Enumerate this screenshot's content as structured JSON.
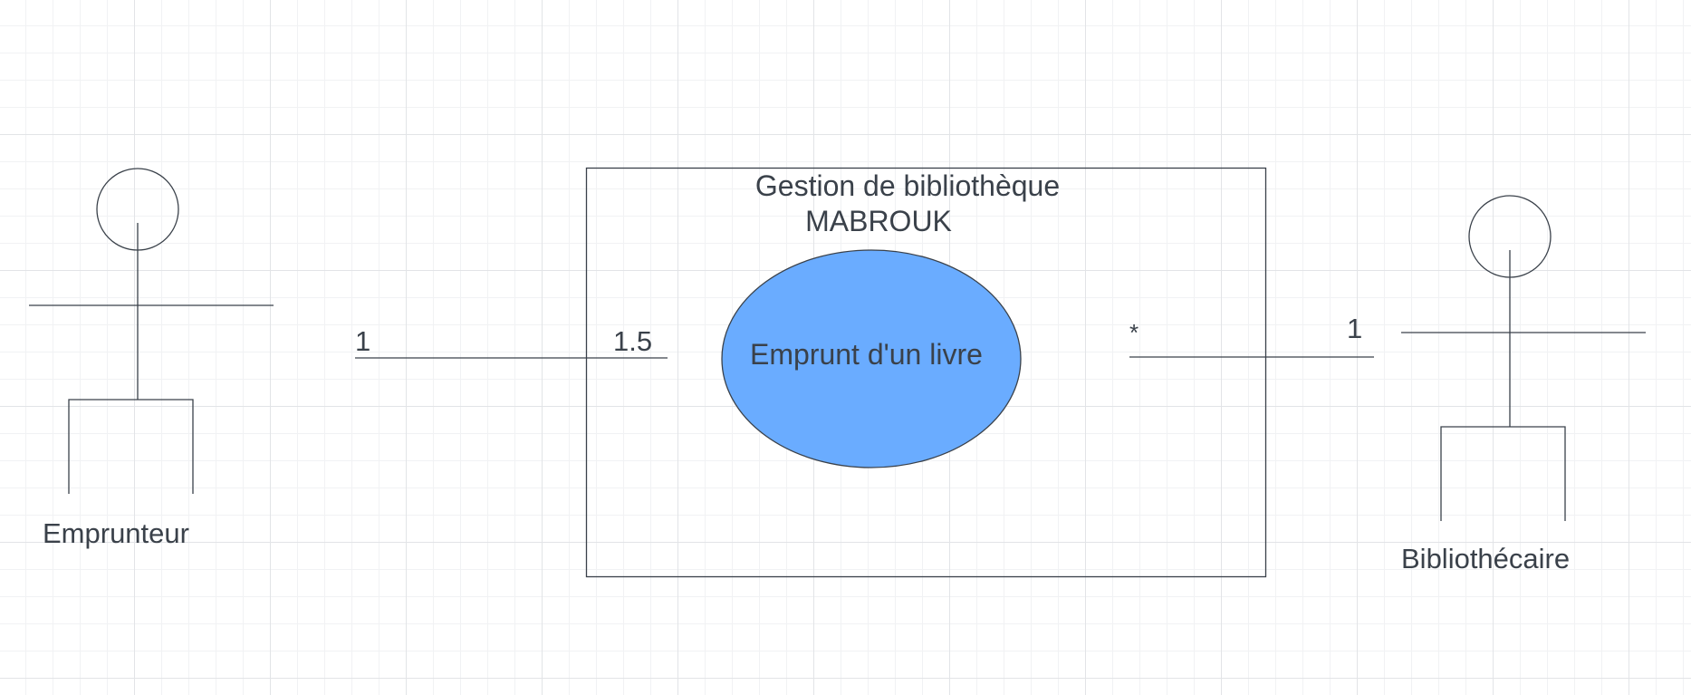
{
  "diagram": {
    "system": {
      "title_line1": "Gestion de bibliothèque",
      "title_line2": "MABROUK"
    },
    "use_case": {
      "label": "Emprunt d'un livre",
      "fill": "#6AACFF"
    },
    "actors": {
      "left": {
        "name": "Emprunteur"
      },
      "right": {
        "name": "Bibliothécaire"
      }
    },
    "associations": {
      "left": {
        "actor_end": "1",
        "use_case_end": "1.5"
      },
      "right": {
        "use_case_end": "*",
        "actor_end": "1"
      }
    },
    "colors": {
      "stroke": "#3A414A",
      "text": "#3A414A",
      "use_case_fill": "#6AACFF"
    }
  }
}
